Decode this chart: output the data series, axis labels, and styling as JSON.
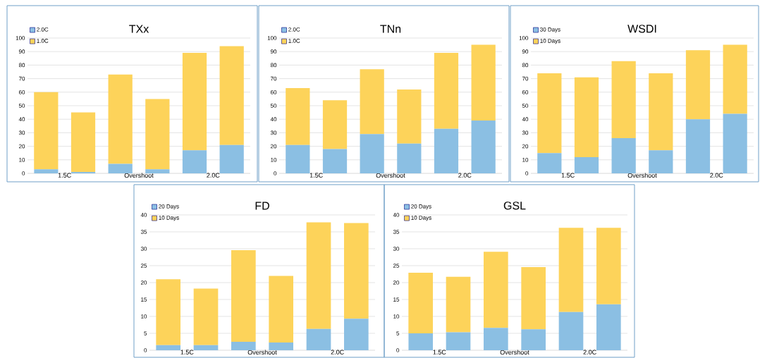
{
  "chart_data": [
    {
      "type": "bar",
      "title": "TXx",
      "stacked": true,
      "categories": [
        "1.5C",
        null,
        "Overshoot",
        null,
        "2.0C",
        null
      ],
      "ylim": [
        0,
        100
      ],
      "yticks": [
        0,
        10,
        20,
        30,
        40,
        50,
        60,
        70,
        80,
        90,
        100
      ],
      "grid": "y",
      "legend": "top left",
      "series": [
        {
          "name": "2.0C",
          "color": "#8bbfe3",
          "values": [
            3,
            1,
            7,
            3,
            17,
            21
          ]
        },
        {
          "name": "1.0C",
          "color": "#fdd35a",
          "values": [
            57,
            44,
            66,
            52,
            72,
            73
          ]
        }
      ]
    },
    {
      "type": "bar",
      "title": "TNn",
      "stacked": true,
      "categories": [
        "1.5C",
        null,
        "Overshoot",
        null,
        "2.0C",
        null
      ],
      "ylim": [
        0,
        100
      ],
      "yticks": [
        0,
        10,
        20,
        30,
        40,
        50,
        60,
        70,
        80,
        90,
        100
      ],
      "grid": "y",
      "legend": "top left",
      "series": [
        {
          "name": "2.0C",
          "color": "#8bbfe3",
          "values": [
            21,
            18,
            29,
            22,
            33,
            39
          ]
        },
        {
          "name": "1.0C",
          "color": "#fdd35a",
          "values": [
            42,
            36,
            48,
            40,
            56,
            56
          ]
        }
      ]
    },
    {
      "type": "bar",
      "title": "WSDI",
      "stacked": true,
      "categories": [
        "1.5C",
        null,
        "Overshoot",
        null,
        "2.0C",
        null
      ],
      "ylim": [
        0,
        100
      ],
      "yticks": [
        0,
        10,
        20,
        30,
        40,
        50,
        60,
        70,
        80,
        90,
        100
      ],
      "grid": "y",
      "legend": "top left",
      "series": [
        {
          "name": "30 Days",
          "color": "#8bbfe3",
          "values": [
            15,
            12,
            26,
            17,
            40,
            44
          ]
        },
        {
          "name": "10 Days",
          "color": "#fdd35a",
          "values": [
            59,
            59,
            57,
            57,
            51,
            51
          ]
        }
      ]
    },
    {
      "type": "bar",
      "title": "FD",
      "stacked": true,
      "categories": [
        "1.5C",
        null,
        "Overshoot",
        null,
        "2.0C",
        null
      ],
      "ylim": [
        0,
        40
      ],
      "yticks": [
        0,
        5,
        10,
        15,
        20,
        25,
        30,
        35,
        40
      ],
      "grid": "y",
      "legend": "top left",
      "series": [
        {
          "name": "20 Days",
          "color": "#8bbfe3",
          "values": [
            1.5,
            1.5,
            2.5,
            2.3,
            6.3,
            9.3
          ]
        },
        {
          "name": "10 Days",
          "color": "#fdd35a",
          "values": [
            19.5,
            16.7,
            27.1,
            19.7,
            31.5,
            28.3
          ]
        }
      ]
    },
    {
      "type": "bar",
      "title": "GSL",
      "stacked": true,
      "categories": [
        "1.5C",
        null,
        "Overshoot",
        null,
        "2.0C",
        null
      ],
      "ylim": [
        0,
        40
      ],
      "yticks": [
        0,
        5,
        10,
        15,
        20,
        25,
        30,
        35,
        40
      ],
      "grid": "y",
      "legend": "top left",
      "series": [
        {
          "name": "20 Days",
          "color": "#8bbfe3",
          "values": [
            5,
            5.3,
            6.6,
            6.2,
            11.3,
            13.6
          ]
        },
        {
          "name": "10 Days",
          "color": "#fdd35a",
          "values": [
            17.9,
            16.4,
            22.5,
            18.4,
            24.9,
            22.6
          ]
        }
      ]
    }
  ]
}
